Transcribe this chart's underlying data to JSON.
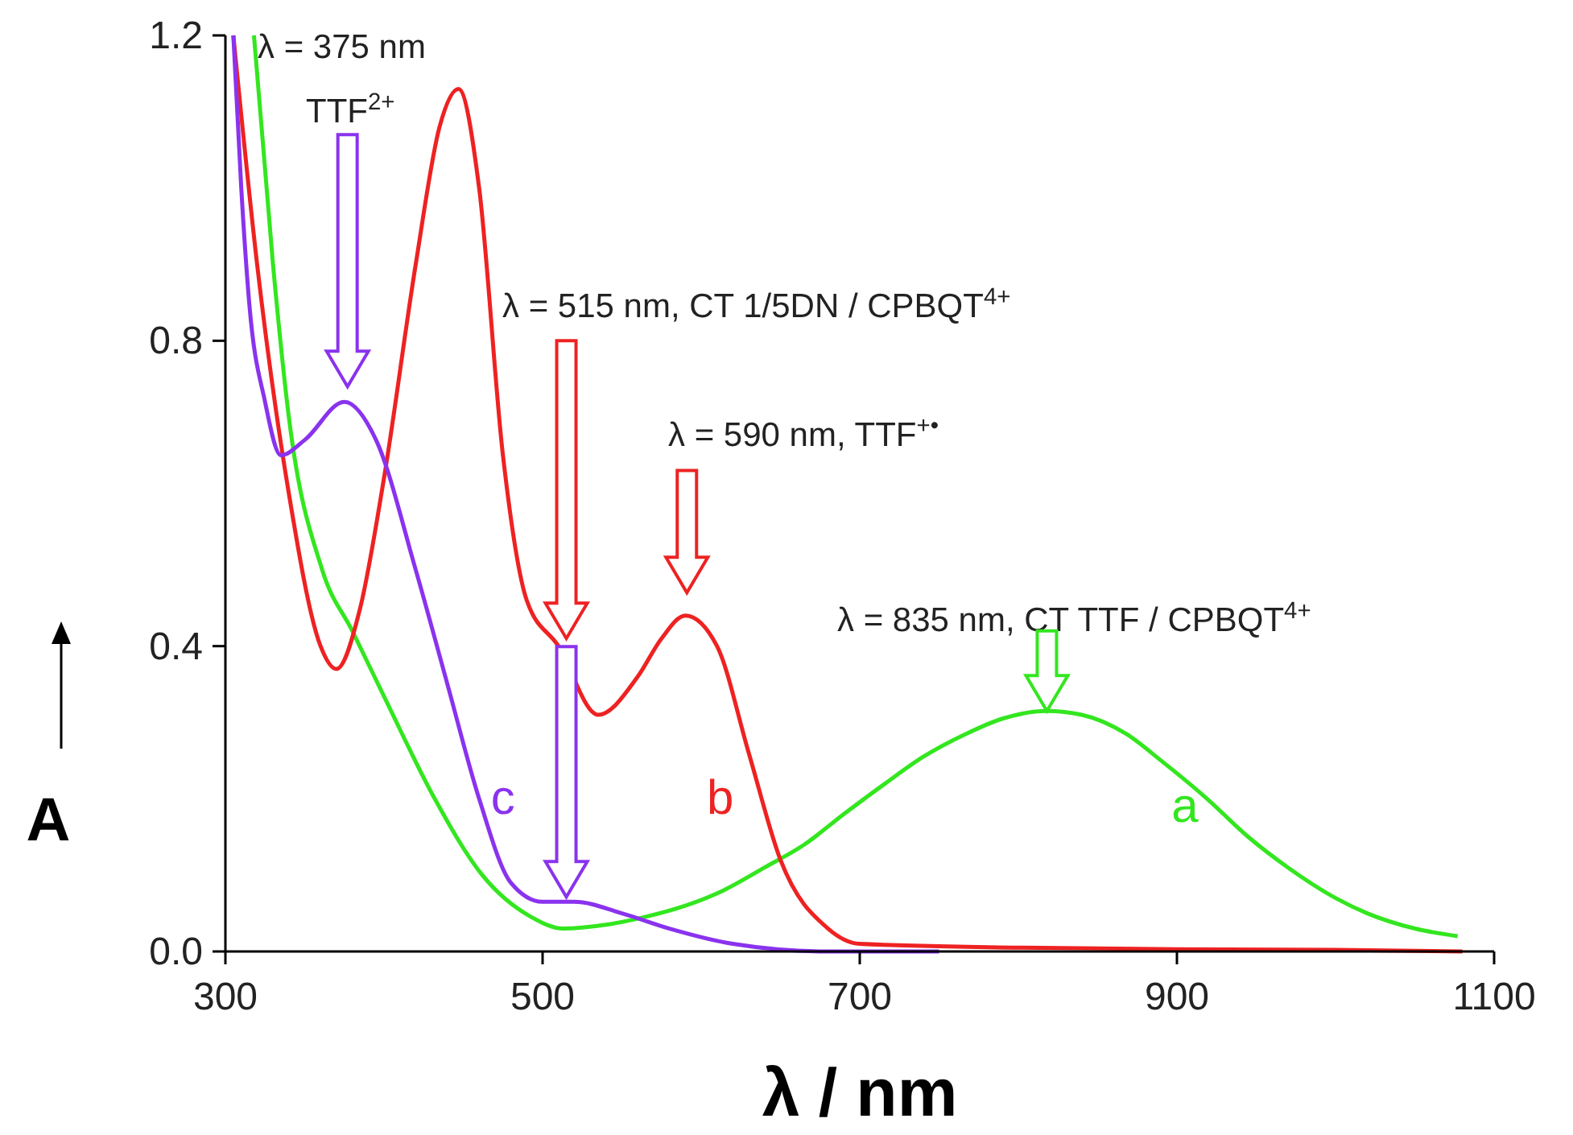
{
  "chart_data": {
    "type": "line",
    "xlabel": "λ / nm",
    "ylabel": "A",
    "xlim": [
      300,
      1100
    ],
    "ylim": [
      0,
      1.2
    ],
    "xticks": [
      300,
      500,
      700,
      900,
      1100
    ],
    "yticks": [
      {
        "value": 0,
        "label": "0.0"
      },
      {
        "value": 0.4,
        "label": "0.4"
      },
      {
        "value": 0.8,
        "label": "0.8"
      },
      {
        "value": 1.2,
        "label": "1.2"
      }
    ],
    "grid": false,
    "line_style": "solid",
    "series": [
      {
        "name": "a",
        "color": "#33e61f",
        "x": [
          318,
          330,
          340,
          361,
          380,
          401,
          432,
          462,
          493,
          513,
          540,
          564,
          590,
          614,
          640,
          665,
          690,
          716,
          740,
          767,
          790,
          818,
          840,
          868,
          890,
          919,
          945,
          970,
          1000,
          1020,
          1050,
          1077
        ],
        "values": [
          1.2,
          0.9,
          0.7,
          0.5,
          0.42,
          0.33,
          0.2,
          0.1,
          0.045,
          0.03,
          0.035,
          0.045,
          0.06,
          0.08,
          0.11,
          0.14,
          0.18,
          0.22,
          0.255,
          0.285,
          0.305,
          0.315,
          0.31,
          0.285,
          0.25,
          0.2,
          0.15,
          0.11,
          0.07,
          0.05,
          0.03,
          0.02
        ]
      },
      {
        "name": "b",
        "color": "#ee2222",
        "x": [
          305,
          320,
          340,
          360,
          370,
          385,
          400,
          420,
          435,
          447,
          460,
          475,
          490,
          510,
          535,
          560,
          575,
          590,
          610,
          630,
          650,
          680,
          700,
          800,
          900,
          1000,
          1080
        ],
        "values": [
          1.2,
          0.9,
          0.6,
          0.4,
          0.37,
          0.45,
          0.62,
          0.9,
          1.08,
          1.13,
          1.0,
          0.65,
          0.46,
          0.4,
          0.31,
          0.36,
          0.41,
          0.44,
          0.4,
          0.26,
          0.12,
          0.03,
          0.01,
          0.005,
          0.003,
          0.002,
          0.0
        ]
      },
      {
        "name": "c",
        "color": "#8a33ee",
        "x": [
          305,
          310,
          315,
          325,
          335,
          350,
          375,
          395,
          420,
          440,
          460,
          480,
          500,
          520,
          550,
          580,
          620,
          680,
          750
        ],
        "values": [
          1.2,
          1.0,
          0.85,
          0.72,
          0.65,
          0.67,
          0.72,
          0.67,
          0.5,
          0.35,
          0.2,
          0.09,
          0.065,
          0.065,
          0.05,
          0.03,
          0.01,
          0.0,
          0.0
        ]
      }
    ],
    "annotations": [
      "λ = 375 nm\nTTF$^{2+}$",
      "λ = 515 nm, CT 1/5DN / CPBQT$^{4+}$",
      "λ = 590 nm, TTF$^{+•}$",
      {
        "text": "λ = 835 nm, CT TTF / CPBQT$^{4+}$",
        "x": 818,
        "y": 0.315
      }
    ]
  }
}
